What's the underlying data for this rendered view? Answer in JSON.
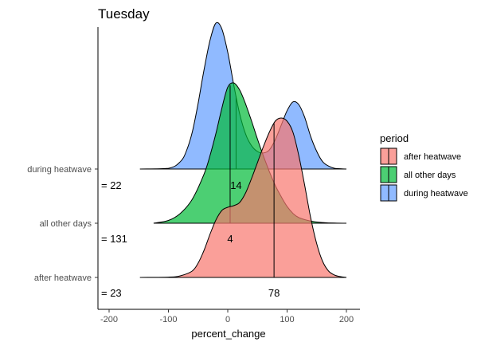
{
  "chart_data": {
    "type": "ridgeline",
    "title": "Tuesday",
    "xlabel": "percent_change",
    "ylabel": "",
    "xlim": [
      -220,
      220
    ],
    "x_ticks": [
      -200,
      -100,
      0,
      100,
      200
    ],
    "grid": false,
    "legend": {
      "title": "period",
      "placement": "right",
      "entries": [
        {
          "label": "after heatwave",
          "color": "#F8766D"
        },
        {
          "label": "all other days",
          "color": "#00BA38"
        },
        {
          "label": "during heatwave",
          "color": "#619CFF"
        }
      ]
    },
    "series": [
      {
        "name": "after heatwave",
        "color": "#F8766D",
        "n_label": "= 23",
        "median_label": "78",
        "median": 78,
        "x": [
          -148,
          -100,
          -80,
          -60,
          -50,
          -40,
          -30,
          -20,
          -10,
          0,
          10,
          20,
          30,
          40,
          50,
          60,
          70,
          80,
          90,
          100,
          110,
          120,
          130,
          140,
          150,
          160,
          170,
          180,
          190,
          200
        ],
        "density": [
          0,
          0.002,
          0.01,
          0.04,
          0.09,
          0.17,
          0.27,
          0.36,
          0.42,
          0.44,
          0.45,
          0.47,
          0.53,
          0.62,
          0.72,
          0.82,
          0.91,
          0.98,
          1.0,
          0.98,
          0.91,
          0.76,
          0.57,
          0.37,
          0.21,
          0.1,
          0.04,
          0.015,
          0.005,
          0
        ]
      },
      {
        "name": "all other days",
        "color": "#00BA38",
        "n_label": "= 131",
        "median_label": "4",
        "median": 4,
        "x": [
          -125,
          -100,
          -80,
          -60,
          -40,
          -30,
          -20,
          -10,
          0,
          10,
          20,
          30,
          40,
          50,
          60,
          70,
          80,
          90,
          100,
          110,
          120,
          140,
          160,
          180,
          200
        ],
        "density": [
          0,
          0.02,
          0.07,
          0.17,
          0.35,
          0.48,
          0.64,
          0.82,
          0.97,
          1.0,
          0.95,
          0.85,
          0.73,
          0.6,
          0.48,
          0.37,
          0.27,
          0.19,
          0.12,
          0.07,
          0.04,
          0.015,
          0.005,
          0.001,
          0
        ]
      },
      {
        "name": "during heatwave",
        "color": "#619CFF",
        "n_label": "= 22",
        "median_label": "14",
        "median": 14,
        "x": [
          -148,
          -100,
          -80,
          -70,
          -60,
          -50,
          -40,
          -30,
          -20,
          -10,
          0,
          10,
          20,
          30,
          40,
          50,
          60,
          70,
          80,
          90,
          100,
          110,
          120,
          130,
          140,
          150,
          160,
          170,
          180,
          200
        ],
        "density": [
          0,
          0.005,
          0.05,
          0.12,
          0.25,
          0.45,
          0.68,
          0.88,
          1.0,
          0.96,
          0.8,
          0.58,
          0.38,
          0.24,
          0.16,
          0.12,
          0.11,
          0.13,
          0.2,
          0.3,
          0.4,
          0.46,
          0.44,
          0.35,
          0.22,
          0.12,
          0.05,
          0.02,
          0.005,
          0
        ]
      }
    ]
  }
}
